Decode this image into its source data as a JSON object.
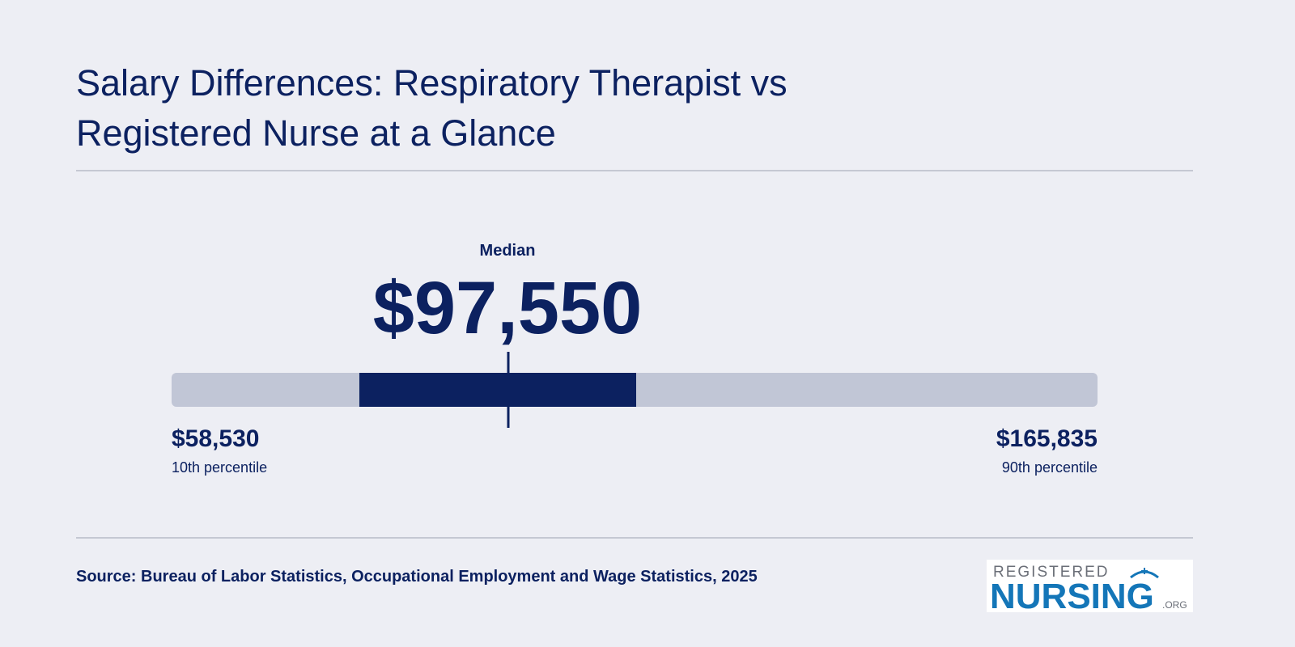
{
  "chart_data": {
    "type": "range",
    "title": "Salary Differences: Respiratory Therapist vs Registered Nurse at a Glance",
    "median_title": "Median",
    "median": {
      "value": 97550,
      "label": "$97,550"
    },
    "low": {
      "value": 58530,
      "label": "$58,530",
      "caption": "10th percentile"
    },
    "high": {
      "value": 165835,
      "label": "$165,835",
      "caption": "90th percentile"
    },
    "box": [
      80290,
      112370
    ],
    "track_color": "#c1c6d6",
    "color": "#0c2160"
  },
  "source": "Source: Bureau of Labor Statistics, Occupational Employment and Wage Statistics, 2025",
  "logo": {
    "top": "REGISTERED",
    "main": "NURSING",
    "suffix": ".ORG"
  }
}
